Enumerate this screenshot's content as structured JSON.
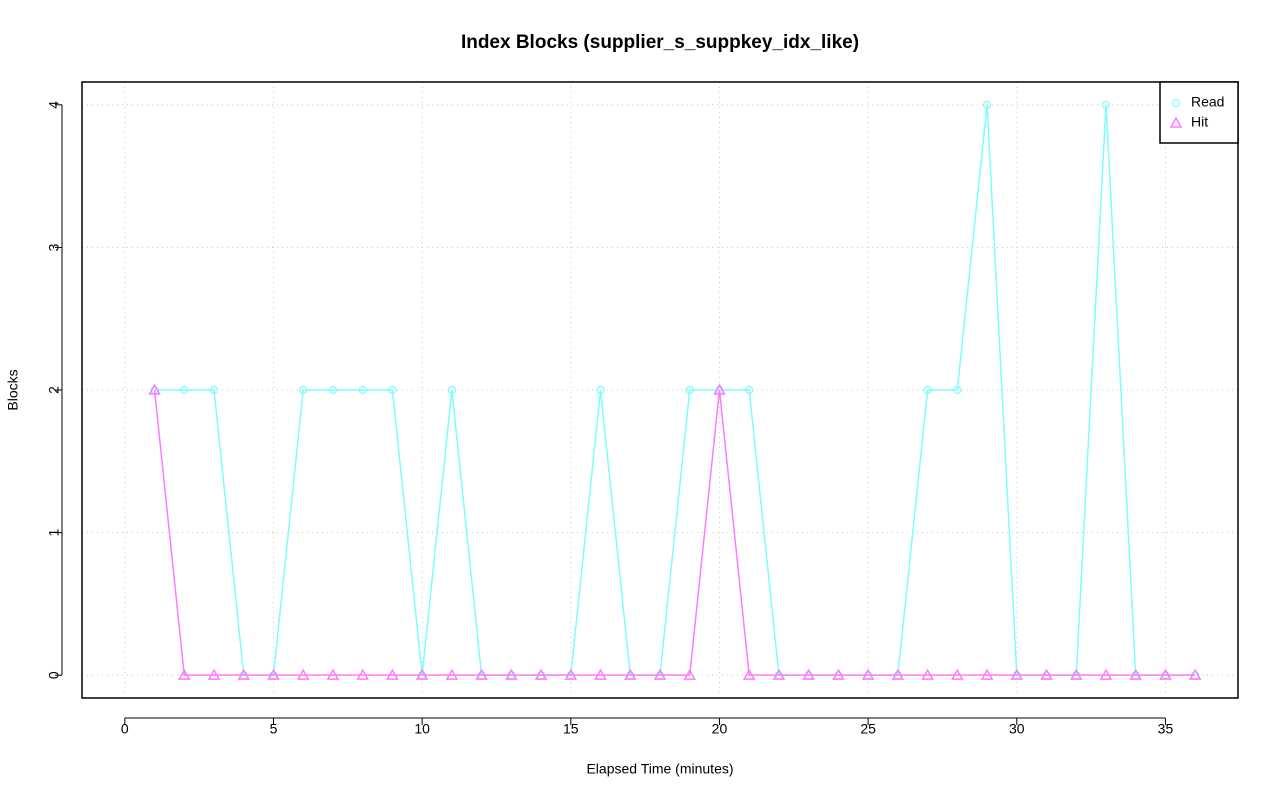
{
  "chart_data": {
    "type": "line",
    "title": "Index Blocks (supplier_s_suppkey_idx_like)",
    "x_label": "Elapsed Time (minutes)",
    "y_label": "Blocks",
    "x": [
      1,
      2,
      3,
      4,
      5,
      6,
      7,
      8,
      9,
      10,
      11,
      12,
      13,
      14,
      15,
      16,
      17,
      18,
      19,
      20,
      21,
      22,
      23,
      24,
      25,
      26,
      27,
      28,
      29,
      30,
      31,
      32,
      33,
      34,
      35,
      36
    ],
    "series": [
      {
        "name": "Read",
        "color": "#7ffcfc",
        "marker": "circle",
        "values": [
          2,
          2,
          2,
          0,
          0,
          2,
          2,
          2,
          2,
          0,
          2,
          0,
          0,
          0,
          0,
          2,
          0,
          0,
          2,
          2,
          2,
          0,
          0,
          0,
          0,
          0,
          2,
          2,
          4,
          0,
          0,
          0,
          4,
          0,
          0,
          0
        ]
      },
      {
        "name": "Hit",
        "color": "#ff7bff",
        "marker": "triangle",
        "values": [
          2,
          0,
          0,
          0,
          0,
          0,
          0,
          0,
          0,
          0,
          0,
          0,
          0,
          0,
          0,
          0,
          0,
          0,
          0,
          2,
          0,
          0,
          0,
          0,
          0,
          0,
          0,
          0,
          0,
          0,
          0,
          0,
          0,
          0,
          0,
          0
        ]
      }
    ],
    "xlim": [
      -1.44,
      37.44
    ],
    "ylim": [
      -0.16,
      4.16
    ],
    "xticks": [
      0,
      5,
      10,
      15,
      20,
      25,
      30,
      35
    ],
    "yticks": [
      0,
      1,
      2,
      3,
      4
    ],
    "grid": true,
    "legend": "topright"
  }
}
